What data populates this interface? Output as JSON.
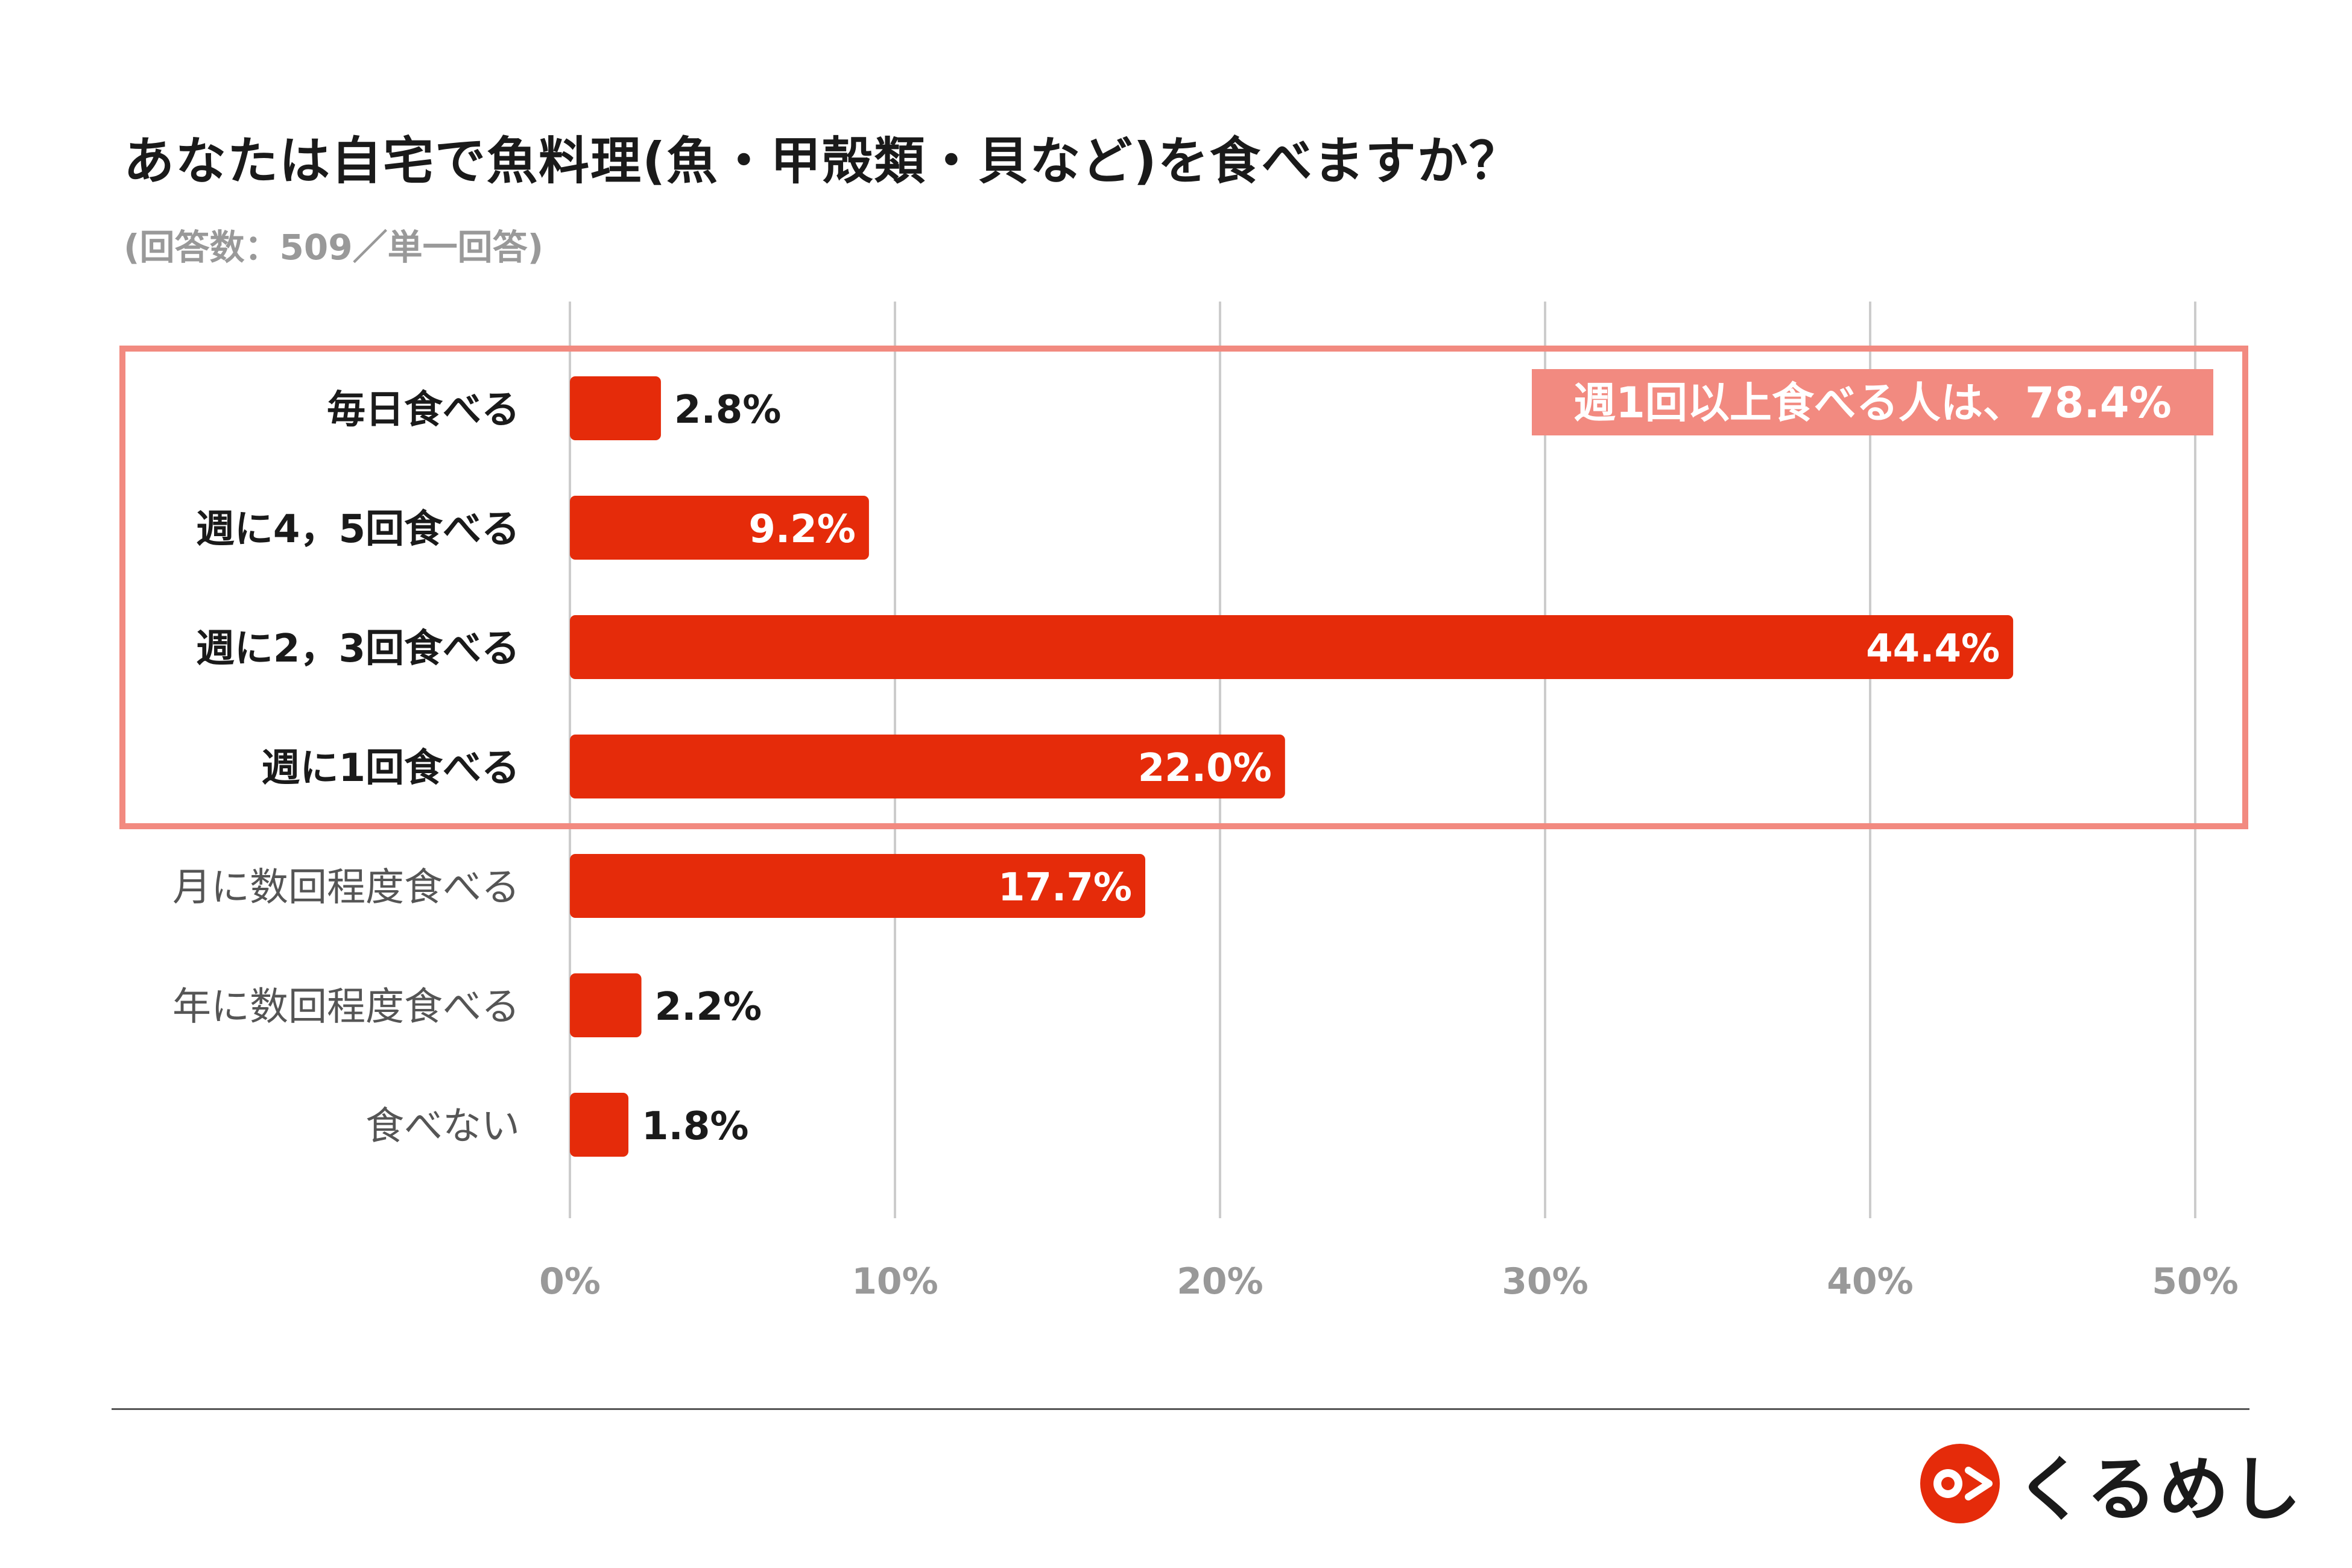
{
  "header": {
    "title": "あなたは自宅で魚料理(魚・甲殻類・貝など)を食べますか？",
    "subtitle": "(回答数：509／単一回答)"
  },
  "chart_data": {
    "type": "bar",
    "orientation": "horizontal",
    "title": "あなたは自宅で魚料理(魚・甲殻類・貝など)を食べますか？",
    "subtitle": "(回答数：509／単一回答)",
    "categories": [
      "毎日食べる",
      "週に4，5回食べる",
      "週に2，3回食べる",
      "週に1回食べる",
      "月に数回程度食べる",
      "年に数回程度食べる",
      "食べない"
    ],
    "values": [
      2.8,
      9.2,
      44.4,
      22.0,
      17.7,
      2.2,
      1.8
    ],
    "value_labels": [
      "2.8%",
      "9.2%",
      "44.4%",
      "22.0%",
      "17.7%",
      "2.2%",
      "1.8%"
    ],
    "highlighted": [
      true,
      true,
      true,
      true,
      false,
      false,
      false
    ],
    "xlim": [
      0,
      50
    ],
    "ticks": [
      0,
      10,
      20,
      30,
      40,
      50
    ],
    "tick_labels": [
      "0%",
      "10%",
      "20%",
      "30%",
      "40%",
      "50%"
    ],
    "grid": true,
    "annotation": "週1回以上食べる人は、78.4%",
    "bar_color": "#e52b0a",
    "highlight_color": "#f28a80"
  },
  "brand": {
    "name": "くるめし",
    "color": "#e52b0a"
  }
}
